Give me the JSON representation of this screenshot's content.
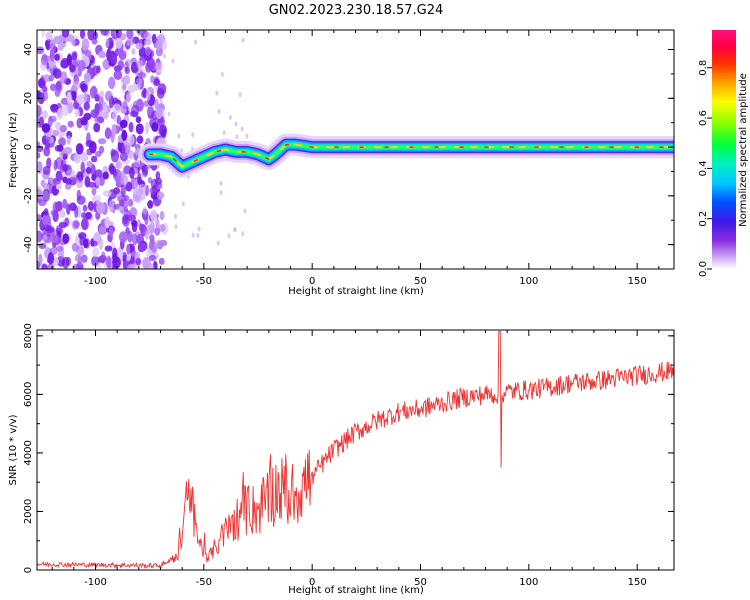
{
  "figure": {
    "title": "GN02.2023.230.18.57.G24"
  },
  "chart_data": [
    {
      "type": "heatmap",
      "xlabel": "Height of straight line (km)",
      "ylabel": "Frequency (Hz)",
      "xlim": [
        -127,
        167
      ],
      "ylim": [
        -50,
        48
      ],
      "x_ticks": [
        -100,
        -50,
        0,
        50,
        100,
        150
      ],
      "y_ticks": [
        -40,
        -20,
        0,
        20,
        40
      ],
      "grid": false,
      "colorbar": {
        "label": "Normalized spectral amplitude",
        "ticks": [
          "0.0",
          "0.2",
          "0.4",
          "0.6",
          "0.8"
        ],
        "range": [
          0,
          0.95
        ]
      },
      "noise_region_x": [
        -127,
        -68
      ],
      "ridge": [
        {
          "x": -75,
          "y": -3
        },
        {
          "x": -70,
          "y": -3
        },
        {
          "x": -65,
          "y": -4
        },
        {
          "x": -60,
          "y": -8
        },
        {
          "x": -55,
          "y": -6
        },
        {
          "x": -50,
          "y": -4
        },
        {
          "x": -45,
          "y": -2
        },
        {
          "x": -40,
          "y": -1
        },
        {
          "x": -35,
          "y": -2
        },
        {
          "x": -30,
          "y": -2
        },
        {
          "x": -25,
          "y": -3
        },
        {
          "x": -20,
          "y": -5
        },
        {
          "x": -17,
          "y": -3
        },
        {
          "x": -12,
          "y": 1
        },
        {
          "x": -8,
          "y": 1
        },
        {
          "x": 0,
          "y": 0
        },
        {
          "x": 50,
          "y": 0
        },
        {
          "x": 100,
          "y": 0
        },
        {
          "x": 167,
          "y": 0
        }
      ]
    },
    {
      "type": "line",
      "xlabel": "Height of straight line (km)",
      "ylabel": "SNR (10 * v/v)",
      "xlim": [
        -127,
        167
      ],
      "ylim": [
        0,
        8200
      ],
      "x_ticks": [
        -100,
        -50,
        0,
        50,
        100,
        150
      ],
      "y_ticks": [
        0,
        2000,
        4000,
        6000,
        8000
      ],
      "grid": false,
      "color": "#ee3333",
      "envelope": [
        {
          "x": -127,
          "y": 200
        },
        {
          "x": -70,
          "y": 150
        },
        {
          "x": -62,
          "y": 500
        },
        {
          "x": -57,
          "y": 2600
        },
        {
          "x": -52,
          "y": 900
        },
        {
          "x": -48,
          "y": 400
        },
        {
          "x": -40,
          "y": 1300
        },
        {
          "x": -32,
          "y": 2000
        },
        {
          "x": -24,
          "y": 2100
        },
        {
          "x": -16,
          "y": 2800
        },
        {
          "x": -10,
          "y": 2500
        },
        {
          "x": 0,
          "y": 3200
        },
        {
          "x": 10,
          "y": 4100
        },
        {
          "x": 20,
          "y": 4700
        },
        {
          "x": 30,
          "y": 5100
        },
        {
          "x": 40,
          "y": 5400
        },
        {
          "x": 50,
          "y": 5500
        },
        {
          "x": 60,
          "y": 5700
        },
        {
          "x": 70,
          "y": 5900
        },
        {
          "x": 80,
          "y": 6000
        },
        {
          "x": 86,
          "y": 6000
        },
        {
          "x": 90,
          "y": 6100
        },
        {
          "x": 100,
          "y": 6150
        },
        {
          "x": 110,
          "y": 6250
        },
        {
          "x": 120,
          "y": 6400
        },
        {
          "x": 130,
          "y": 6450
        },
        {
          "x": 140,
          "y": 6550
        },
        {
          "x": 150,
          "y": 6650
        },
        {
          "x": 160,
          "y": 6750
        },
        {
          "x": 167,
          "y": 6800
        }
      ],
      "spike": {
        "x": 86.5,
        "y_max": 8150,
        "y_min": 3500
      }
    }
  ]
}
